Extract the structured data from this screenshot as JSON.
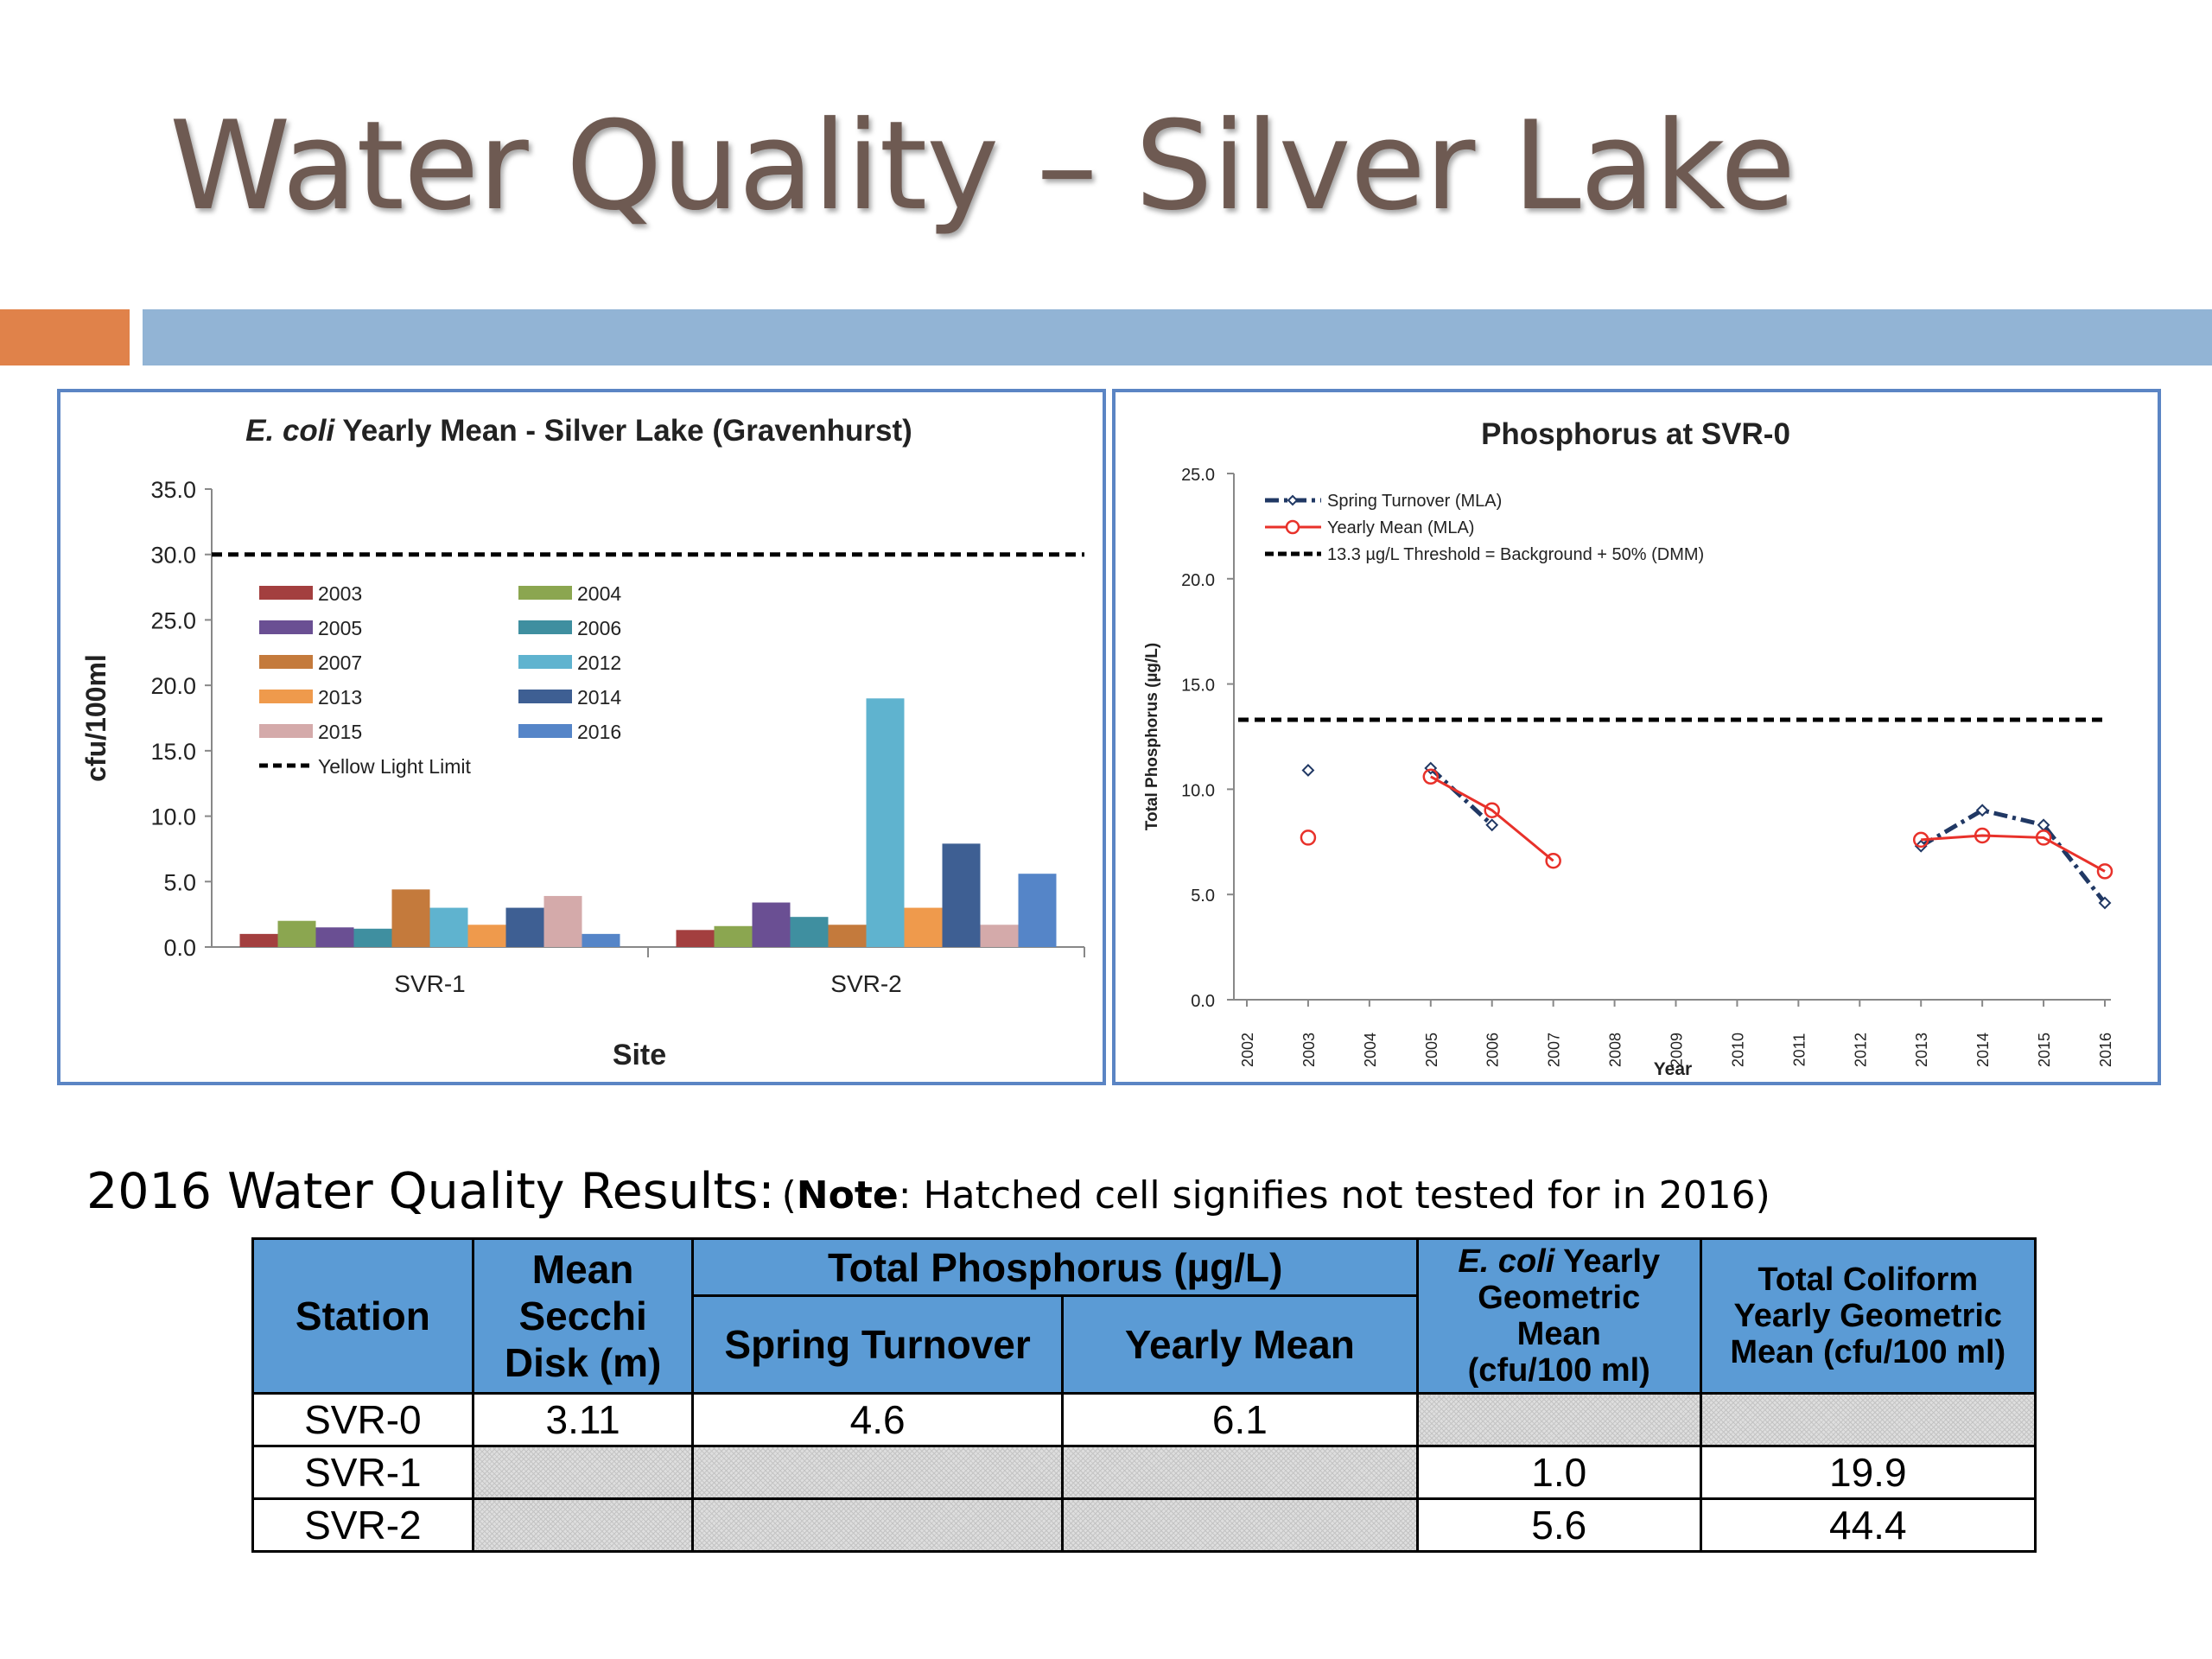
{
  "slide": {
    "title": "Water Quality – Silver Lake",
    "accent_colors": {
      "orange": "#e0824a",
      "blue": "#92b4d5",
      "panel_border": "#5b85c4",
      "table_header": "#5b9bd5"
    }
  },
  "chart_data": [
    {
      "type": "bar",
      "title_italic": "E. coli",
      "title_rest": " Yearly Mean - Silver Lake (Gravenhurst)",
      "xlabel": "Site",
      "ylabel": "cfu/100ml",
      "ylim": [
        0,
        35
      ],
      "yticks": [
        "0.0",
        "5.0",
        "10.0",
        "15.0",
        "20.0",
        "25.0",
        "30.0",
        "35.0"
      ],
      "categories": [
        "SVR-1",
        "SVR-2"
      ],
      "series": [
        {
          "name": "2003",
          "color": "#a33f3f",
          "values": [
            1.0,
            1.3
          ]
        },
        {
          "name": "2004",
          "color": "#8ba650",
          "values": [
            2.0,
            1.6
          ]
        },
        {
          "name": "2005",
          "color": "#6a4f93",
          "values": [
            1.5,
            3.4
          ]
        },
        {
          "name": "2006",
          "color": "#3f8fa0",
          "values": [
            1.4,
            2.3
          ]
        },
        {
          "name": "2007",
          "color": "#c47a3c",
          "values": [
            4.4,
            1.7
          ]
        },
        {
          "name": "2012",
          "color": "#5fb3cf",
          "values": [
            3.0,
            19.0
          ]
        },
        {
          "name": "2013",
          "color": "#ef9a4c",
          "values": [
            1.7,
            3.0
          ]
        },
        {
          "name": "2014",
          "color": "#3e5f93",
          "values": [
            3.0,
            7.9
          ]
        },
        {
          "name": "2015",
          "color": "#d4aaaa",
          "values": [
            3.9,
            1.7
          ]
        },
        {
          "name": "2016",
          "color": "#5585c8",
          "values": [
            1.0,
            5.6
          ]
        }
      ],
      "reference_line": {
        "name": "Yellow Light Limit",
        "value": 30.0
      },
      "grid": false,
      "legend": "upper-left inside plot"
    },
    {
      "type": "line",
      "title": "Phosphorus at SVR-0",
      "xlabel": "Year",
      "ylabel": "Total Phosphorus (µg/L)",
      "ylim": [
        0,
        25
      ],
      "yticks": [
        "0.0",
        "5.0",
        "10.0",
        "15.0",
        "20.0",
        "25.0"
      ],
      "x": [
        "2002",
        "2003",
        "2004",
        "2005",
        "2006",
        "2007",
        "2008",
        "2009",
        "2010",
        "2011",
        "2012",
        "2013",
        "2014",
        "2015",
        "2016"
      ],
      "series": [
        {
          "name": "Spring Turnover (MLA)",
          "color": "#203864",
          "style": "dash-dot",
          "marker": "diamond",
          "points": [
            [
              2003,
              10.9
            ],
            [
              2005,
              11.0
            ],
            [
              2006,
              8.3
            ],
            [
              2013,
              7.3
            ],
            [
              2014,
              9.0
            ],
            [
              2015,
              8.3
            ],
            [
              2016,
              4.6
            ]
          ]
        },
        {
          "name": "Yearly Mean (MLA)",
          "color": "#e8312a",
          "style": "solid",
          "marker": "circle",
          "points": [
            [
              2003,
              7.7
            ],
            [
              2005,
              10.6
            ],
            [
              2006,
              9.0
            ],
            [
              2007,
              6.6
            ],
            [
              2013,
              7.6
            ],
            [
              2014,
              7.8
            ],
            [
              2015,
              7.7
            ],
            [
              2016,
              6.1
            ]
          ]
        }
      ],
      "reference_line": {
        "name": "13.3 µg/L Threshold = Background + 50% (DMM)",
        "value": 13.3
      },
      "grid": false,
      "legend": "top-left"
    }
  ],
  "results": {
    "heading": "2016 Water Quality Results",
    "colon": ":",
    "note_label": "Note",
    "note_text": ": Hatched cell signifies not tested for in 2016)",
    "note_open": "(",
    "headers": {
      "station": "Station",
      "secchi": [
        "Mean",
        "Secchi",
        "Disk (m)"
      ],
      "tp_group": "Total Phosphorus (µg/L)",
      "tp_spring": "Spring Turnover",
      "tp_yearly": "Yearly Mean",
      "ecoli_italic": "E. coli",
      "ecoli_rest": [
        " Yearly",
        "Geometric",
        "Mean",
        "(cfu/100 ml)"
      ],
      "coliform": [
        "Total Coliform",
        "Yearly Geometric",
        "Mean (cfu/100 ml)"
      ]
    },
    "rows": [
      {
        "station": "SVR-0",
        "secchi": "3.11",
        "tp_spring": "4.6",
        "tp_yearly": "6.1",
        "ecoli": "",
        "coliform": ""
      },
      {
        "station": "SVR-1",
        "secchi": "",
        "tp_spring": "",
        "tp_yearly": "",
        "ecoli": "1.0",
        "coliform": "19.9"
      },
      {
        "station": "SVR-2",
        "secchi": "",
        "tp_spring": "",
        "tp_yearly": "",
        "ecoli": "5.6",
        "coliform": "44.4"
      }
    ]
  }
}
